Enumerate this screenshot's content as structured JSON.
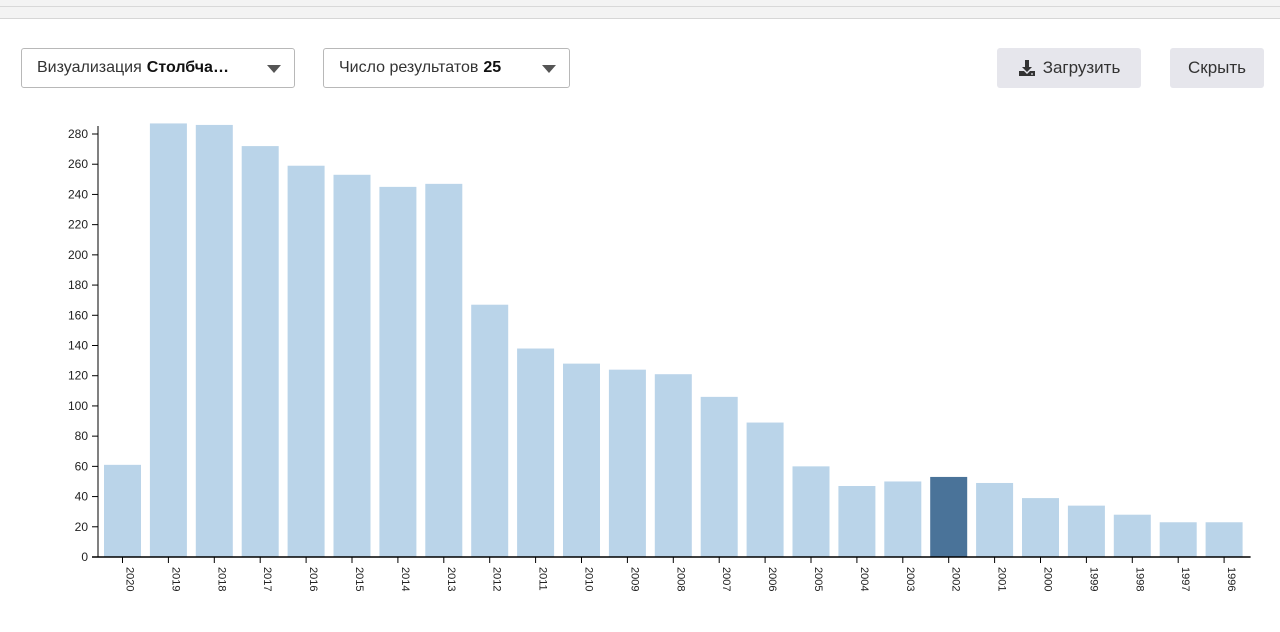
{
  "controls": {
    "viz_label": "Визуализация",
    "viz_value": "Столбча…",
    "count_label": "Число результатов",
    "count_value": "25",
    "download_label": "Загрузить",
    "hide_label": "Скрыть"
  },
  "icons": {
    "download": "download-icon",
    "dropdown": "caret-down-icon"
  },
  "colors": {
    "bar": "#bad4e9",
    "bar_highlight": "#4a7399"
  },
  "chart_data": {
    "type": "bar",
    "categories": [
      "2020",
      "2019",
      "2018",
      "2017",
      "2016",
      "2015",
      "2014",
      "2013",
      "2012",
      "2011",
      "2010",
      "2009",
      "2008",
      "2007",
      "2006",
      "2005",
      "2004",
      "2003",
      "2002",
      "2001",
      "2000",
      "1999",
      "1998",
      "1997",
      "1996"
    ],
    "values": [
      61,
      287,
      286,
      272,
      259,
      253,
      245,
      247,
      167,
      138,
      128,
      124,
      121,
      106,
      89,
      60,
      47,
      50,
      53,
      49,
      39,
      34,
      28,
      23,
      23
    ],
    "highlighted": "2002",
    "y_ticks": [
      0,
      20,
      40,
      60,
      80,
      100,
      120,
      140,
      160,
      180,
      200,
      220,
      240,
      260,
      280
    ],
    "ylim": [
      0,
      287
    ],
    "title": "",
    "xlabel": "",
    "ylabel": ""
  }
}
